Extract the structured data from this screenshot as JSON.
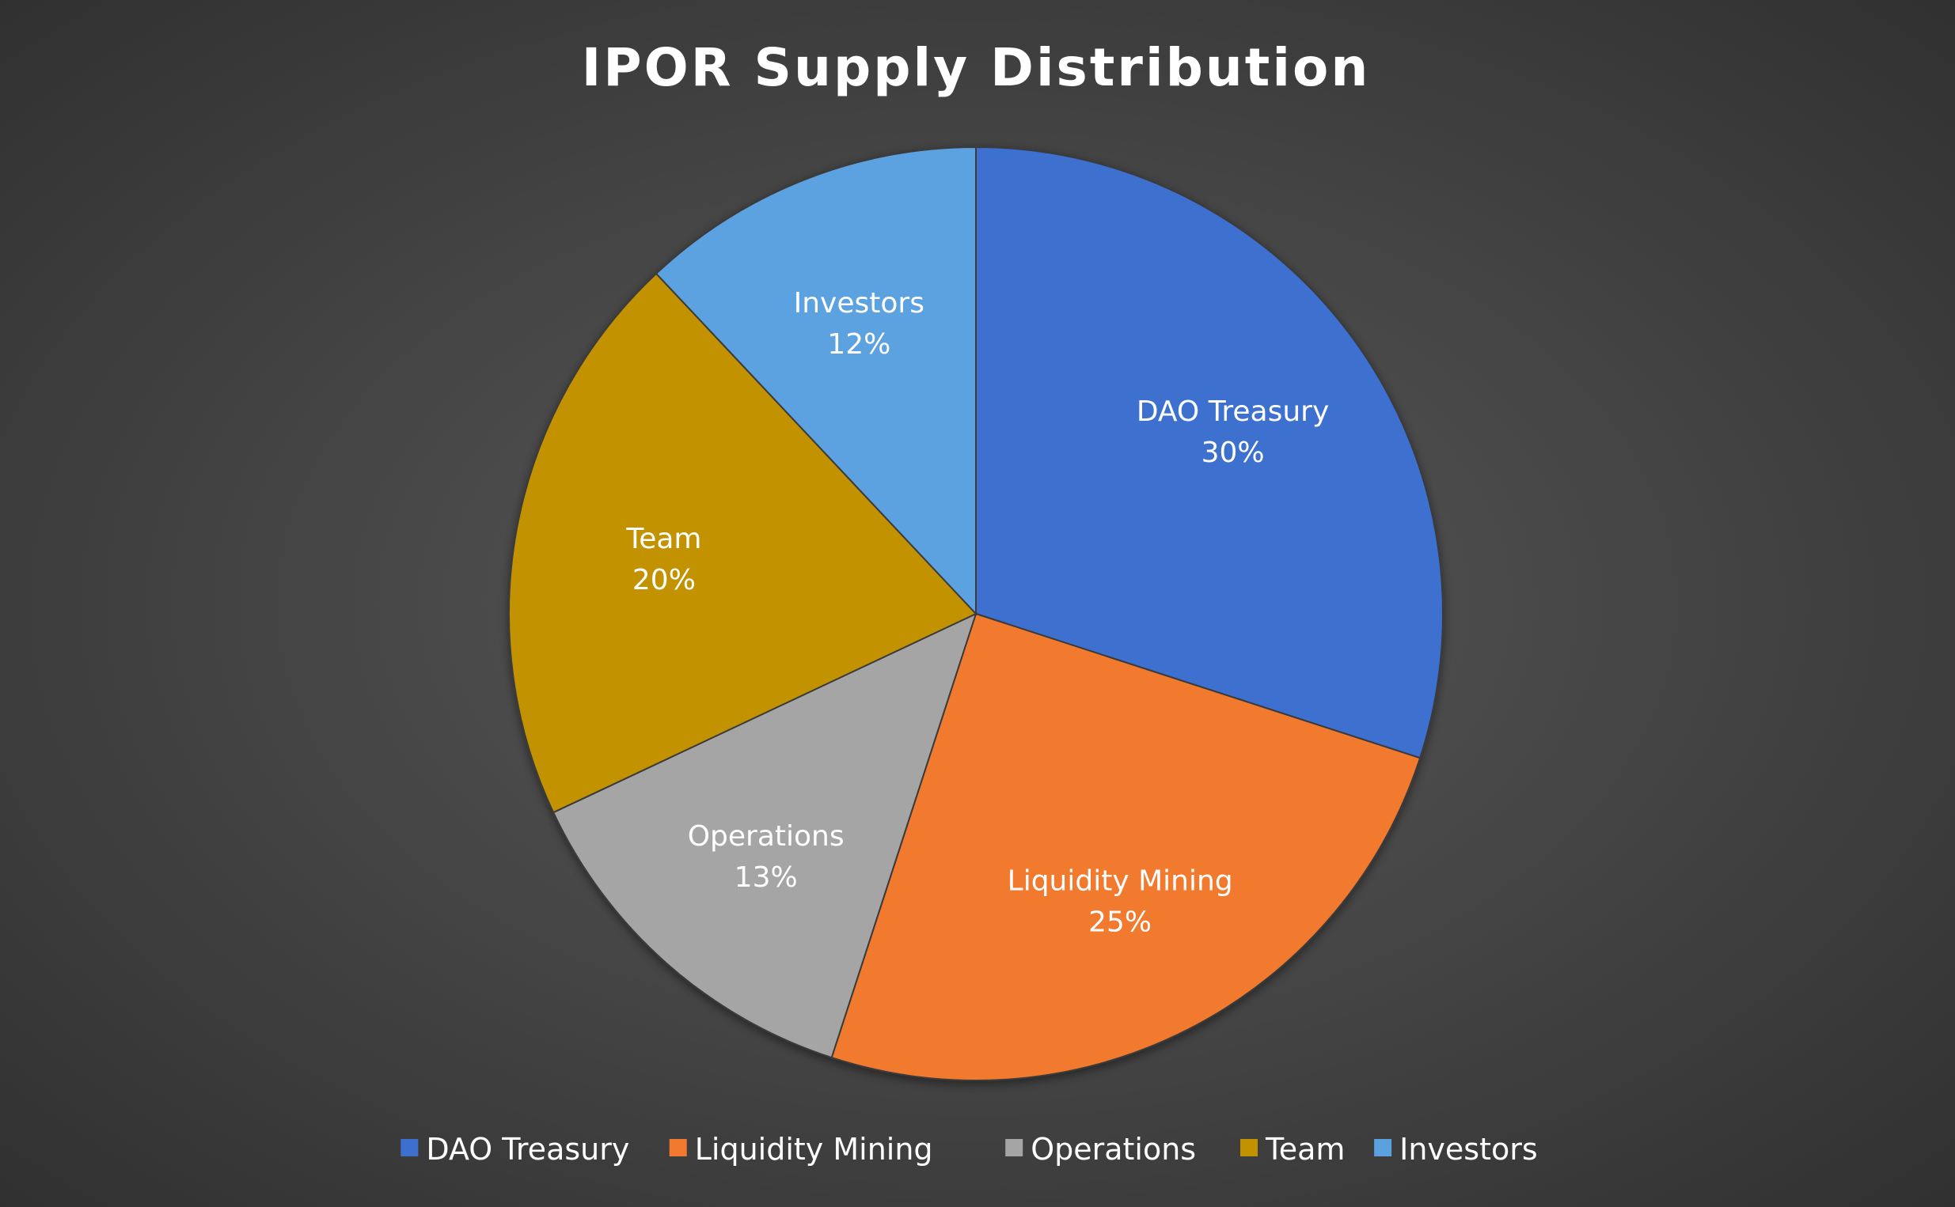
{
  "chart_data": {
    "type": "pie",
    "title": "IPOR Supply Distribution",
    "categories": [
      "DAO Treasury",
      "Liquidity Mining",
      "Operations",
      "Team",
      "Investors"
    ],
    "values": [
      30,
      25,
      13,
      20,
      12
    ],
    "value_labels": [
      "30%",
      "25%",
      "13%",
      "20%",
      "12%"
    ],
    "colors": [
      "#3d6fcf",
      "#f27a2e",
      "#a5a5a5",
      "#c29200",
      "#5ba1e0"
    ],
    "legend_position": "bottom",
    "start_angle": "12 o'clock, clockwise"
  }
}
